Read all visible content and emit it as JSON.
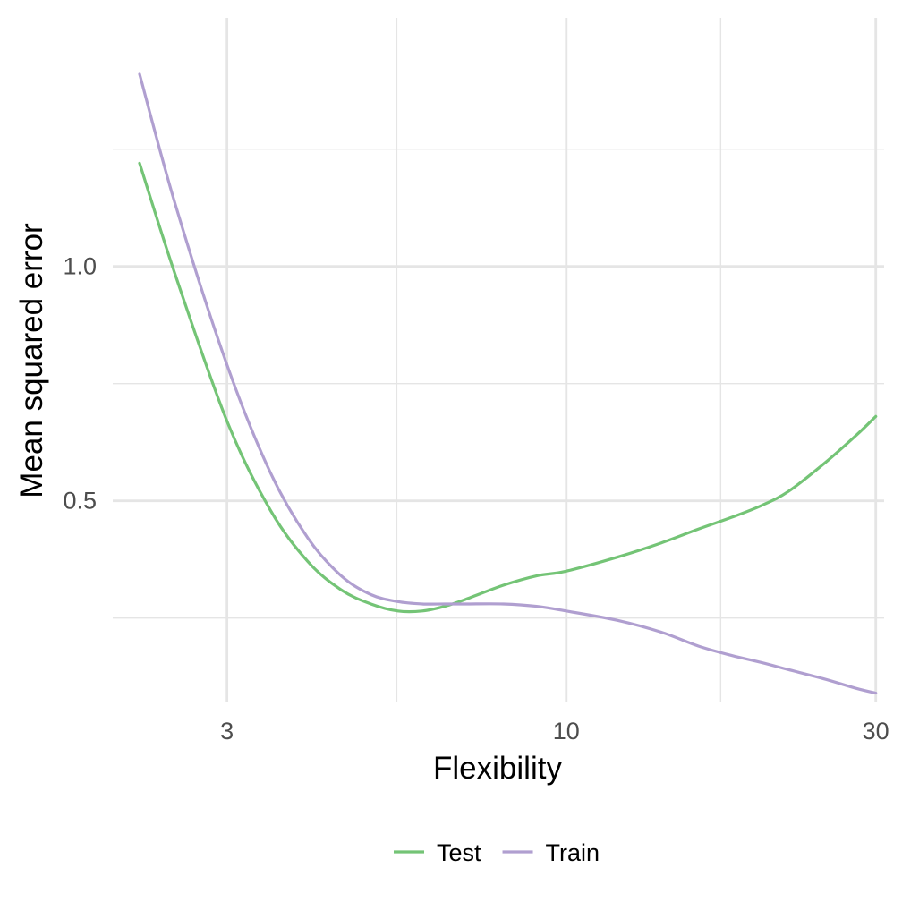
{
  "chart_data": {
    "type": "line",
    "xscale": "log",
    "xlabel": "Flexibility",
    "ylabel": "Mean squared error",
    "xlim": [
      2.0,
      30.9
    ],
    "ylim": [
      0.07,
      1.53
    ],
    "xticks": [
      {
        "value": 3,
        "label": "3"
      },
      {
        "value": 10,
        "label": "10"
      },
      {
        "value": 30,
        "label": "30"
      }
    ],
    "xminor": [
      5.48,
      17.3
    ],
    "yticks": [
      {
        "value": 0.5,
        "label": "0.5"
      },
      {
        "value": 1.0,
        "label": "1.0"
      }
    ],
    "yminor": [
      0.25,
      0.75,
      1.25
    ],
    "grid": true,
    "legend_position": "bottom",
    "series": [
      {
        "name": "Test",
        "color": "#74c476",
        "x": [
          2.2,
          2.5,
          3.0,
          3.5,
          4.0,
          4.5,
          5.0,
          5.5,
          6.0,
          6.5,
          7.0,
          8.0,
          9.0,
          10.0,
          12.0,
          14.0,
          16.0,
          18.0,
          20.0,
          22.0,
          25.0,
          28.0,
          30.0
        ],
        "y": [
          1.22,
          0.98,
          0.67,
          0.48,
          0.37,
          0.31,
          0.28,
          0.265,
          0.265,
          0.275,
          0.29,
          0.32,
          0.34,
          0.35,
          0.38,
          0.41,
          0.44,
          0.465,
          0.49,
          0.52,
          0.58,
          0.64,
          0.68
        ]
      },
      {
        "name": "Train",
        "color": "#b09fd0",
        "x": [
          2.2,
          2.5,
          3.0,
          3.5,
          4.0,
          4.5,
          5.0,
          5.5,
          6.0,
          6.5,
          7.0,
          8.0,
          9.0,
          10.0,
          12.0,
          14.0,
          16.0,
          18.0,
          20.0,
          22.0,
          25.0,
          28.0,
          30.0
        ],
        "y": [
          1.41,
          1.13,
          0.79,
          0.56,
          0.42,
          0.34,
          0.3,
          0.285,
          0.28,
          0.28,
          0.28,
          0.28,
          0.275,
          0.265,
          0.245,
          0.22,
          0.19,
          0.17,
          0.155,
          0.14,
          0.12,
          0.1,
          0.09
        ]
      }
    ]
  }
}
